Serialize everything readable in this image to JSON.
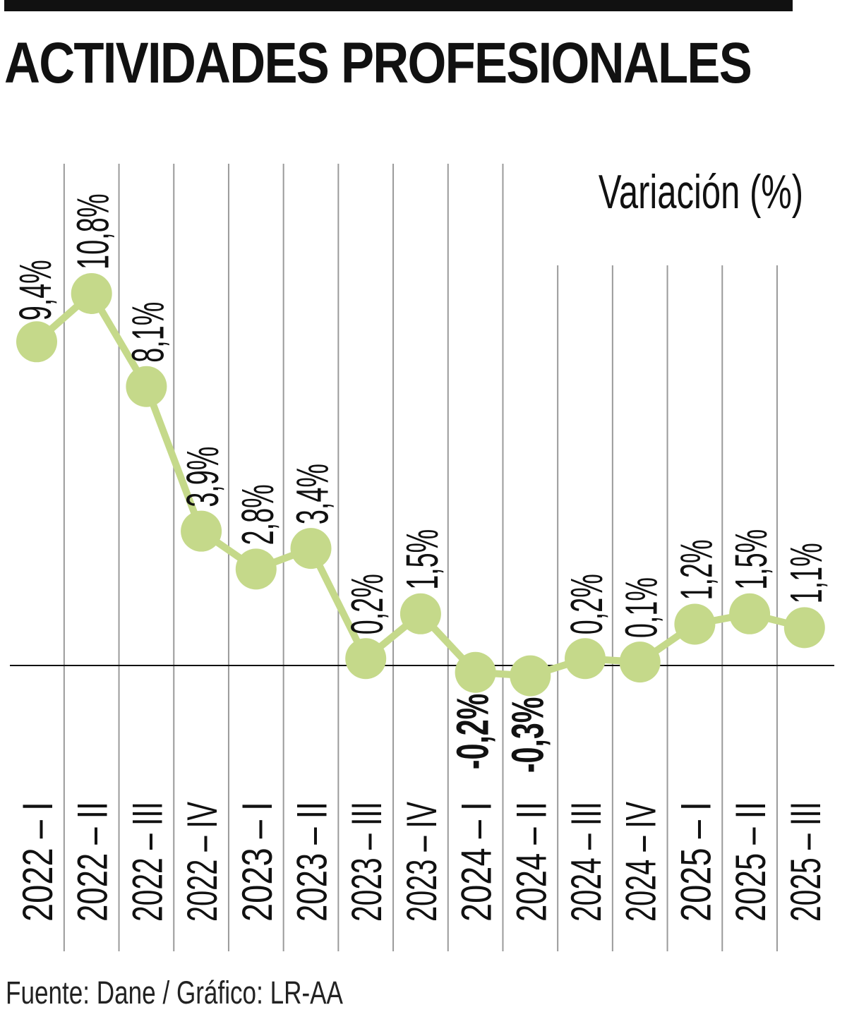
{
  "header": {
    "title": "ACTIVIDADES PROFESIONALES"
  },
  "footer": {
    "source": "Fuente: Dane / Gráfico: LR-AA"
  },
  "colors": {
    "series": "#c5d98a",
    "text": "#111111",
    "gridline": "#9a9a9a",
    "zero_line": "#111111"
  },
  "chart_data": {
    "type": "line",
    "title": "ACTIVIDADES PROFESIONALES",
    "ylabel": "Variación (%)",
    "xlabel": "",
    "grid": "vertical lines per category",
    "categories": [
      "2022 – I",
      "2022 – II",
      "2022 – III",
      "2022 – IV",
      "2023 – I",
      "2023 – II",
      "2023 – III",
      "2023 – IV",
      "2024 – I",
      "2024 – II",
      "2024 – III",
      "2024 – IV",
      "2025 – I",
      "2025 – II",
      "2025 – III"
    ],
    "series": [
      {
        "values": [
          9.4,
          10.8,
          8.1,
          3.9,
          2.8,
          3.4,
          0.2,
          1.5,
          -0.2,
          -0.3,
          0.2,
          0.1,
          1.2,
          1.5,
          1.1
        ],
        "labels": [
          "9,4%",
          "10,8%",
          "8,1%",
          "3,9%",
          "2,8%",
          "3,4%",
          "0,2%",
          "1,5%",
          "-0,2%",
          "-0,3%",
          "0,2%",
          "0,1%",
          "1,2%",
          "1,5%",
          "1,1%"
        ]
      }
    ]
  }
}
